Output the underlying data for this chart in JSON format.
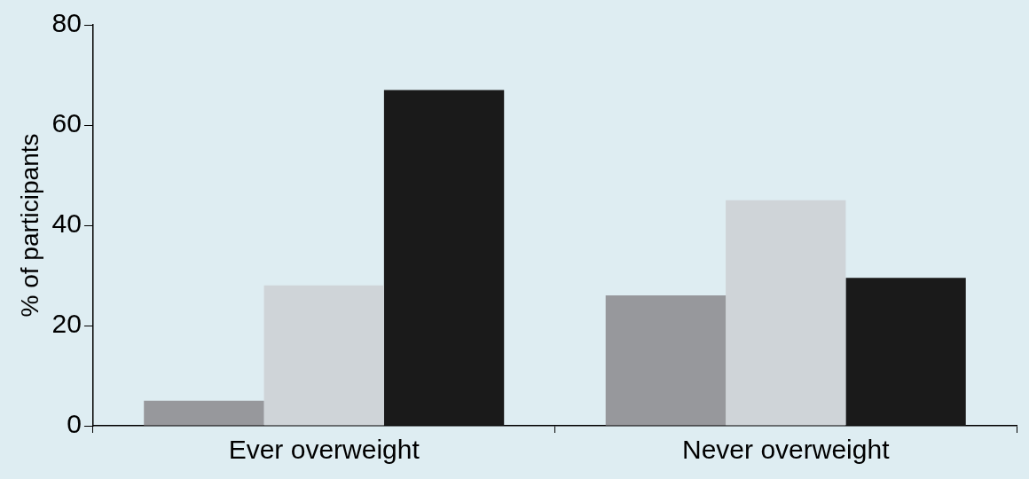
{
  "chart_data": {
    "type": "bar",
    "ylabel": "% of participants",
    "categories": [
      "Ever overweight",
      "Never overweight"
    ],
    "series": [
      {
        "color": "#97989c",
        "values": [
          5,
          26
        ]
      },
      {
        "color": "#cfd4d8",
        "values": [
          28,
          45
        ]
      },
      {
        "color": "#1a1a1a",
        "values": [
          67,
          29.5
        ]
      }
    ],
    "ylim": [
      0,
      80
    ],
    "yticks": [
      0,
      20,
      40,
      60,
      80
    ],
    "grid": false,
    "legend": false
  }
}
